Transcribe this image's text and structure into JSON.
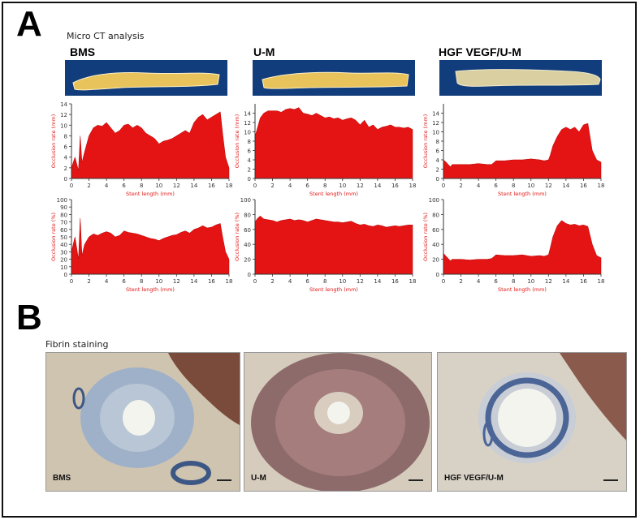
{
  "panels": {
    "a": {
      "letter": "A",
      "title": "Micro CT analysis"
    },
    "b": {
      "letter": "B",
      "title": "Fibrin staining"
    }
  },
  "groups": [
    {
      "name": "BMS"
    },
    {
      "name": "U-M"
    },
    {
      "name": "HGF VEGF/U-M"
    }
  ],
  "micro_labels": [
    "BMS",
    "U-M",
    "HGF VEGF/U-M"
  ],
  "colors": {
    "fill": "#e41414",
    "axis": "#e41414",
    "stent_bg": "#123d7c"
  },
  "chart_data": [
    {
      "type": "area",
      "title": "BMS",
      "ylabel": "Occlusion rate (mm)",
      "xlabel": "Stent length (mm)",
      "xlim": [
        0,
        18
      ],
      "ylim": [
        0,
        14
      ],
      "yticks": [
        0,
        2,
        4,
        6,
        8,
        10,
        12,
        14
      ],
      "xticks": [
        0,
        2,
        4,
        6,
        8,
        10,
        12,
        14,
        16,
        18
      ],
      "x": [
        0,
        0.4,
        0.8,
        1.0,
        1.2,
        1.5,
        2,
        2.5,
        3,
        3.5,
        4,
        4.5,
        5,
        5.5,
        6,
        6.5,
        7,
        7.5,
        8,
        8.5,
        9,
        9.5,
        10,
        10.5,
        11,
        11.5,
        12,
        12.5,
        13,
        13.5,
        14,
        14.5,
        15,
        15.5,
        16,
        16.5,
        17,
        17.3,
        17.6,
        18
      ],
      "y": [
        2,
        4,
        1.5,
        8,
        3,
        5,
        8,
        9.5,
        10,
        9.8,
        10.5,
        9.5,
        8.5,
        9,
        10,
        10.2,
        9.5,
        10,
        9.5,
        8.5,
        8,
        7.5,
        6.5,
        7,
        7.2,
        7.5,
        8,
        8.5,
        9,
        8.5,
        10.5,
        11.5,
        12,
        11,
        11.5,
        12,
        12.5,
        8,
        4,
        2
      ]
    },
    {
      "type": "area",
      "title": "U-M",
      "ylabel": "Occlusion rate (mm)",
      "xlabel": "Stent length (mm)",
      "xlim": [
        0,
        18
      ],
      "ylim": [
        0,
        16
      ],
      "yticks": [
        0,
        2,
        4,
        6,
        8,
        10,
        12,
        14
      ],
      "xticks": [
        0,
        2,
        4,
        6,
        8,
        10,
        12,
        14,
        16,
        18
      ],
      "x": [
        0,
        0.3,
        0.6,
        1,
        1.5,
        2,
        2.5,
        3,
        3.5,
        4,
        4.5,
        5,
        5.5,
        6,
        6.5,
        7,
        7.5,
        8,
        8.5,
        9,
        9.5,
        10,
        10.5,
        11,
        11.5,
        12,
        12.5,
        13,
        13.5,
        14,
        14.5,
        15,
        15.5,
        16,
        16.5,
        17,
        17.5,
        18
      ],
      "y": [
        9,
        11,
        13,
        14,
        14.5,
        14.5,
        14.5,
        14.2,
        14.8,
        15,
        14.8,
        15.2,
        14,
        13.8,
        13.5,
        14,
        13.5,
        13,
        13.2,
        12.8,
        13,
        12.5,
        12.8,
        13,
        12.5,
        11.5,
        12.5,
        11,
        11.5,
        10.5,
        11,
        11.2,
        11.5,
        11,
        11,
        10.8,
        11,
        10.5
      ]
    },
    {
      "type": "area",
      "title": "HGF VEGF/U-M",
      "ylabel": "Occlusion rate (mm)",
      "xlabel": "Stent length (mm)",
      "xlim": [
        0,
        18
      ],
      "ylim": [
        0,
        16
      ],
      "yticks": [
        0,
        2,
        4,
        6,
        8,
        10,
        12,
        14
      ],
      "xticks": [
        0,
        2,
        4,
        6,
        8,
        10,
        12,
        14,
        16,
        18
      ],
      "x": [
        0,
        0.3,
        0.8,
        1,
        2,
        3,
        4,
        5,
        5.5,
        6,
        7,
        8,
        9,
        10,
        11,
        11.5,
        12,
        12.2,
        12.5,
        13,
        13.5,
        14,
        14.5,
        15,
        15.5,
        16,
        16.5,
        17,
        17.5,
        18
      ],
      "y": [
        4,
        3.5,
        2.5,
        3,
        3,
        3,
        3.2,
        3,
        3,
        3.8,
        3.8,
        4,
        4,
        4.2,
        4,
        3.8,
        4,
        5,
        7,
        9,
        10.5,
        11,
        10.5,
        11,
        10,
        11.5,
        11.8,
        6,
        4,
        3.5
      ]
    },
    {
      "type": "area",
      "title": "BMS",
      "ylabel": "Occlusion rate (%)",
      "xlabel": "Stent length (mm)",
      "xlim": [
        0,
        18
      ],
      "ylim": [
        0,
        100
      ],
      "yticks": [
        0,
        10,
        20,
        30,
        40,
        50,
        60,
        70,
        80,
        90,
        100
      ],
      "xticks": [
        0,
        2,
        4,
        6,
        8,
        10,
        12,
        14,
        16,
        18
      ],
      "x": [
        0,
        0.4,
        0.8,
        1.0,
        1.2,
        1.5,
        2,
        2.5,
        3,
        3.5,
        4,
        4.5,
        5,
        5.5,
        6,
        6.5,
        7,
        7.5,
        8,
        8.5,
        9,
        9.5,
        10,
        10.5,
        11,
        11.5,
        12,
        12.5,
        13,
        13.5,
        14,
        14.5,
        15,
        15.5,
        16,
        16.5,
        17,
        17.3,
        17.6,
        18
      ],
      "y": [
        30,
        50,
        20,
        75,
        25,
        40,
        50,
        54,
        52,
        55,
        57,
        55,
        50,
        52,
        58,
        56,
        55,
        54,
        52,
        50,
        48,
        47,
        45,
        48,
        50,
        52,
        53,
        56,
        58,
        55,
        60,
        62,
        65,
        62,
        63,
        66,
        68,
        48,
        30,
        20
      ]
    },
    {
      "type": "area",
      "title": "U-M",
      "ylabel": "Occlusion rate (%)",
      "xlabel": "Stent length (mm)",
      "xlim": [
        0,
        18
      ],
      "ylim": [
        0,
        100
      ],
      "yticks": [
        0,
        20,
        40,
        60,
        80,
        100
      ],
      "xticks": [
        0,
        2,
        4,
        6,
        8,
        10,
        12,
        14,
        16,
        18
      ],
      "x": [
        0,
        0.3,
        0.6,
        1,
        1.5,
        2,
        2.5,
        3,
        3.5,
        4,
        4.5,
        5,
        5.5,
        6,
        6.5,
        7,
        7.5,
        8,
        8.5,
        9,
        9.5,
        10,
        10.5,
        11,
        11.5,
        12,
        12.5,
        13,
        13.5,
        14,
        14.5,
        15,
        15.5,
        16,
        16.5,
        17,
        17.5,
        18
      ],
      "y": [
        70,
        75,
        78,
        74,
        73,
        72,
        70,
        72,
        73,
        74,
        72,
        73,
        72,
        70,
        72,
        74,
        73,
        72,
        71,
        70,
        70,
        69,
        70,
        71,
        68,
        66,
        67,
        65,
        64,
        66,
        65,
        63,
        64,
        65,
        64,
        65,
        66,
        66
      ]
    },
    {
      "type": "area",
      "title": "HGF VEGF/U-M",
      "ylabel": "Occlusion rate (%)",
      "xlabel": "Stent length (mm)",
      "xlim": [
        0,
        18
      ],
      "ylim": [
        0,
        100
      ],
      "yticks": [
        0,
        20,
        40,
        60,
        80,
        100
      ],
      "xticks": [
        0,
        2,
        4,
        6,
        8,
        10,
        12,
        14,
        16,
        18
      ],
      "x": [
        0,
        0.3,
        0.8,
        1,
        2,
        3,
        4,
        5,
        5.5,
        6,
        7,
        8,
        9,
        10,
        11,
        11.5,
        12,
        12.2,
        12.5,
        13,
        13.5,
        14,
        14.5,
        15,
        15.5,
        16,
        16.5,
        17,
        17.5,
        18
      ],
      "y": [
        28,
        24,
        18,
        20,
        20,
        19,
        20,
        20,
        21,
        26,
        25,
        25,
        26,
        24,
        25,
        24,
        26,
        35,
        50,
        65,
        72,
        68,
        66,
        67,
        65,
        66,
        64,
        40,
        25,
        22
      ]
    }
  ]
}
